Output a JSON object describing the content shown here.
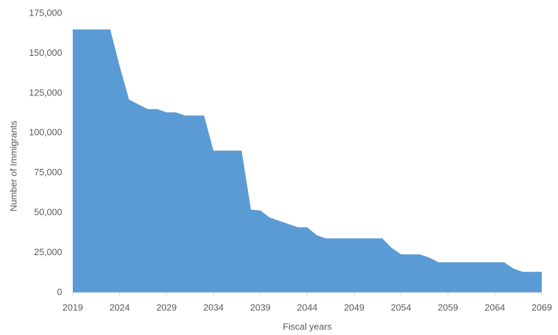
{
  "chart_data": {
    "type": "area",
    "x_label": "Fiscal years",
    "y_label": "Number of Immigrants",
    "x": [
      2019,
      2020,
      2021,
      2022,
      2023,
      2024,
      2025,
      2026,
      2027,
      2028,
      2029,
      2030,
      2031,
      2032,
      2033,
      2034,
      2035,
      2036,
      2037,
      2038,
      2039,
      2040,
      2041,
      2042,
      2043,
      2044,
      2045,
      2046,
      2047,
      2048,
      2049,
      2050,
      2051,
      2052,
      2053,
      2054,
      2055,
      2056,
      2057,
      2058,
      2059,
      2060,
      2061,
      2062,
      2063,
      2064,
      2065,
      2066,
      2067,
      2068,
      2069
    ],
    "values": [
      165000,
      165000,
      165000,
      165000,
      165000,
      142000,
      121000,
      118000,
      115000,
      115000,
      113000,
      113000,
      111000,
      111000,
      111000,
      89000,
      89000,
      89000,
      89000,
      52000,
      51500,
      47000,
      45000,
      43000,
      41000,
      41000,
      36000,
      34000,
      34000,
      34000,
      34000,
      34000,
      34000,
      34000,
      28000,
      24000,
      24000,
      24000,
      22000,
      19000,
      19000,
      19000,
      19000,
      19000,
      19000,
      19000,
      19000,
      15000,
      13000,
      13000,
      13000
    ],
    "color": "#5b9bd5",
    "xlim": [
      2019,
      2069
    ],
    "xticks": [
      2019,
      2024,
      2029,
      2034,
      2039,
      2044,
      2049,
      2054,
      2059,
      2064,
      2069
    ],
    "ylim": [
      0,
      175000
    ],
    "yticks": [
      0,
      {
        "value": 25000,
        "label": "25,000"
      },
      {
        "value": 50000,
        "label": "50,000"
      },
      {
        "value": 75000,
        "label": "75,000"
      },
      {
        "value": 100000,
        "label": "100,000"
      },
      {
        "value": 125000,
        "label": "125,000"
      },
      {
        "value": 150000,
        "label": "150,000"
      },
      {
        "value": 175000,
        "label": "175,000"
      }
    ]
  }
}
